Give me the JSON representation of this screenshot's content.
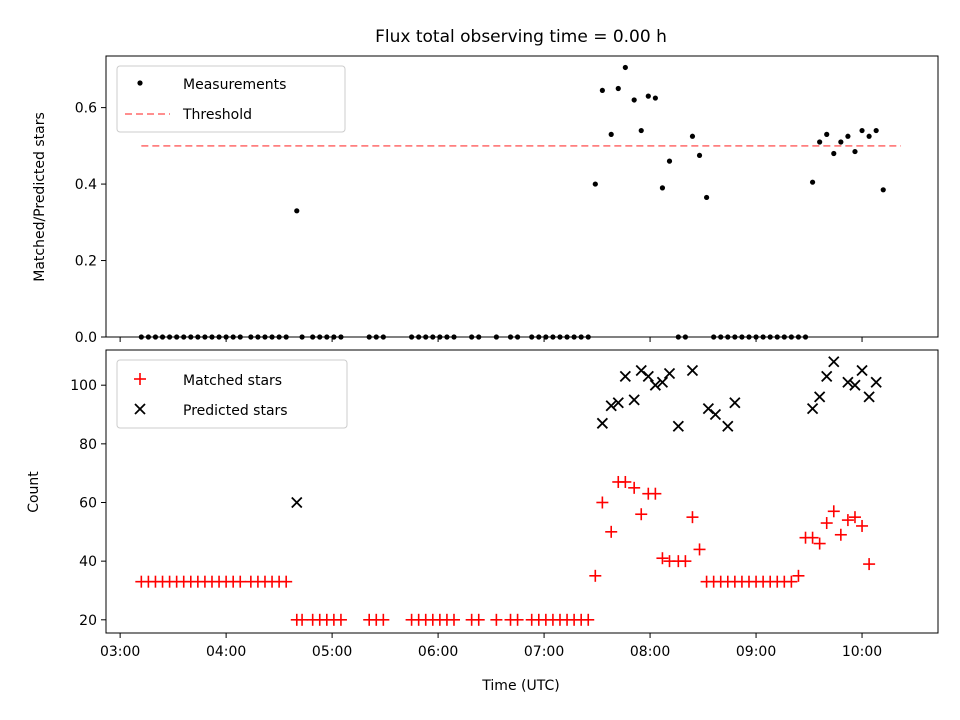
{
  "figure": {
    "title": "Flux total observing time = 0.00 h",
    "xlabel": "Time (UTC)",
    "colors": {
      "measurement": "#000000",
      "threshold": "#ff7f7f",
      "matched": "#ff0000",
      "predicted": "#000000"
    }
  },
  "chart_data": [
    {
      "type": "scatter",
      "ylabel": "Matched/Predicted stars",
      "ylim": [
        0,
        0.735
      ],
      "yticks": [
        0.0,
        0.2,
        0.4,
        0.6
      ],
      "ytick_labels": [
        "0.0",
        "0.2",
        "0.4",
        "0.6"
      ],
      "xlim": [
        "02:52",
        "10:43"
      ],
      "legend": "upper-left",
      "threshold": {
        "name": "Threshold",
        "value": 0.5,
        "x": [
          "03:12",
          "10:22"
        ]
      },
      "series": [
        {
          "name": "Measurements",
          "x": [
            "03:12",
            "03:16",
            "03:20",
            "03:24",
            "03:28",
            "03:32",
            "03:36",
            "03:40",
            "03:44",
            "03:48",
            "03:52",
            "03:56",
            "04:00",
            "04:04",
            "04:08",
            "04:14",
            "04:18",
            "04:22",
            "04:26",
            "04:30",
            "04:34",
            "04:40",
            "04:43",
            "04:49",
            "04:53",
            "04:57",
            "05:01",
            "05:05",
            "05:21",
            "05:25",
            "05:29",
            "05:45",
            "05:49",
            "05:53",
            "05:57",
            "06:01",
            "06:05",
            "06:09",
            "06:19",
            "06:23",
            "06:33",
            "06:41",
            "06:45",
            "06:53",
            "06:57",
            "07:01",
            "07:05",
            "07:09",
            "07:13",
            "07:17",
            "07:21",
            "07:25",
            "07:29",
            "07:33",
            "07:38",
            "07:42",
            "07:46",
            "07:51",
            "07:55",
            "07:59",
            "08:03",
            "08:07",
            "08:11",
            "08:16",
            "08:20",
            "08:24",
            "08:28",
            "08:32",
            "08:36",
            "08:40",
            "08:44",
            "08:48",
            "08:52",
            "08:56",
            "09:00",
            "09:04",
            "09:08",
            "09:12",
            "09:16",
            "09:20",
            "09:24",
            "09:28",
            "09:32",
            "09:36",
            "09:40",
            "09:44",
            "09:48",
            "09:52",
            "09:56",
            "10:00",
            "10:04",
            "10:08",
            "10:12",
            "10:16",
            "10:20"
          ],
          "y": [
            0.0,
            0.0,
            0.0,
            0.0,
            0.0,
            0.0,
            0.0,
            0.0,
            0.0,
            0.0,
            0.0,
            0.0,
            0.0,
            0.0,
            0.0,
            0.0,
            0.0,
            0.0,
            0.0,
            0.0,
            0.0,
            0.33,
            0.0,
            0.0,
            0.0,
            0.0,
            0.0,
            0.0,
            0.0,
            0.0,
            0.0,
            0.0,
            0.0,
            0.0,
            0.0,
            0.0,
            0.0,
            0.0,
            0.0,
            0.0,
            0.0,
            0.0,
            0.0,
            0.0,
            0.0,
            0.0,
            0.0,
            0.0,
            0.0,
            0.0,
            0.0,
            0.0,
            0.4,
            0.645,
            0.53,
            0.65,
            0.705,
            0.62,
            0.54,
            0.63,
            0.625,
            0.39,
            0.46,
            0.0,
            0.0,
            0.525,
            0.475,
            0.365,
            0.0,
            0.0,
            0.0,
            0.0,
            0.0,
            0.0,
            0.0,
            0.0,
            0.0,
            0.0,
            0.0,
            0.0,
            0.0,
            0.0,
            0.405,
            0.51,
            0.53,
            0.48,
            0.51,
            0.525,
            0.485,
            0.54,
            0.525,
            0.54,
            0.385,
            null,
            null
          ]
        }
      ]
    },
    {
      "type": "scatter",
      "ylabel": "Count",
      "xlabel": "Time (UTC)",
      "ylim": [
        15.5,
        112
      ],
      "yticks": [
        20,
        40,
        60,
        80,
        100
      ],
      "ytick_labels": [
        "20",
        "40",
        "60",
        "80",
        "100"
      ],
      "xlim": [
        "02:52",
        "10:43"
      ],
      "xticks": [
        "03:00",
        "04:00",
        "05:00",
        "06:00",
        "07:00",
        "08:00",
        "09:00",
        "10:00"
      ],
      "legend": "upper-left",
      "series": [
        {
          "name": "Matched stars",
          "marker": "plus",
          "x": [
            "03:12",
            "03:16",
            "03:20",
            "03:24",
            "03:28",
            "03:32",
            "03:36",
            "03:40",
            "03:44",
            "03:48",
            "03:52",
            "03:56",
            "04:00",
            "04:04",
            "04:08",
            "04:14",
            "04:18",
            "04:22",
            "04:26",
            "04:30",
            "04:34",
            "04:40",
            "04:43",
            "04:49",
            "04:53",
            "04:57",
            "05:01",
            "05:05",
            "05:21",
            "05:25",
            "05:29",
            "05:45",
            "05:49",
            "05:53",
            "05:57",
            "06:01",
            "06:05",
            "06:09",
            "06:19",
            "06:23",
            "06:33",
            "06:41",
            "06:45",
            "06:53",
            "06:57",
            "07:01",
            "07:05",
            "07:09",
            "07:13",
            "07:17",
            "07:21",
            "07:25",
            "07:29",
            "07:33",
            "07:38",
            "07:42",
            "07:46",
            "07:51",
            "07:55",
            "07:59",
            "08:03",
            "08:07",
            "08:11",
            "08:16",
            "08:20",
            "08:24",
            "08:28",
            "08:32",
            "08:36",
            "08:40",
            "08:44",
            "08:48",
            "08:52",
            "08:56",
            "09:00",
            "09:04",
            "09:08",
            "09:12",
            "09:16",
            "09:20",
            "09:24",
            "09:28",
            "09:32",
            "09:36",
            "09:40",
            "09:44",
            "09:48",
            "09:52",
            "09:56",
            "10:00",
            "10:04",
            "10:08",
            "10:12",
            "10:16",
            "10:20"
          ],
          "y": [
            33,
            33,
            33,
            33,
            33,
            33,
            33,
            33,
            33,
            33,
            33,
            33,
            33,
            33,
            33,
            33,
            33,
            33,
            33,
            33,
            33,
            20,
            20,
            20,
            20,
            20,
            20,
            20,
            20,
            20,
            20,
            20,
            20,
            20,
            20,
            20,
            20,
            20,
            20,
            20,
            20,
            20,
            20,
            20,
            20,
            20,
            20,
            20,
            20,
            20,
            20,
            20,
            35,
            60,
            50,
            67,
            67,
            65,
            56,
            63,
            63,
            41,
            40,
            40,
            40,
            55,
            44,
            33,
            33,
            33,
            33,
            33,
            33,
            33,
            33,
            33,
            33,
            33,
            33,
            33,
            35,
            48,
            48,
            46,
            53,
            57,
            49,
            54,
            55,
            52,
            39,
            null,
            null,
            null,
            null
          ]
        },
        {
          "name": "Predicted stars",
          "marker": "x",
          "x": [
            "04:40",
            "07:33",
            "07:38",
            "07:42",
            "07:46",
            "07:51",
            "07:55",
            "07:59",
            "08:03",
            "08:07",
            "08:11",
            "08:16",
            "08:24",
            "08:33",
            "08:37",
            "08:44",
            "08:48",
            "09:32",
            "09:36",
            "09:40",
            "09:44",
            "09:52",
            "09:56",
            "10:00",
            "10:04",
            "10:08",
            "10:12",
            "10:20"
          ],
          "y": [
            60,
            87,
            93,
            94,
            103,
            95,
            105,
            103,
            100,
            101,
            104,
            86,
            105,
            92,
            90,
            86,
            94,
            92,
            96,
            103,
            108,
            101,
            100,
            105,
            96,
            101,
            null,
            null
          ]
        }
      ]
    }
  ]
}
